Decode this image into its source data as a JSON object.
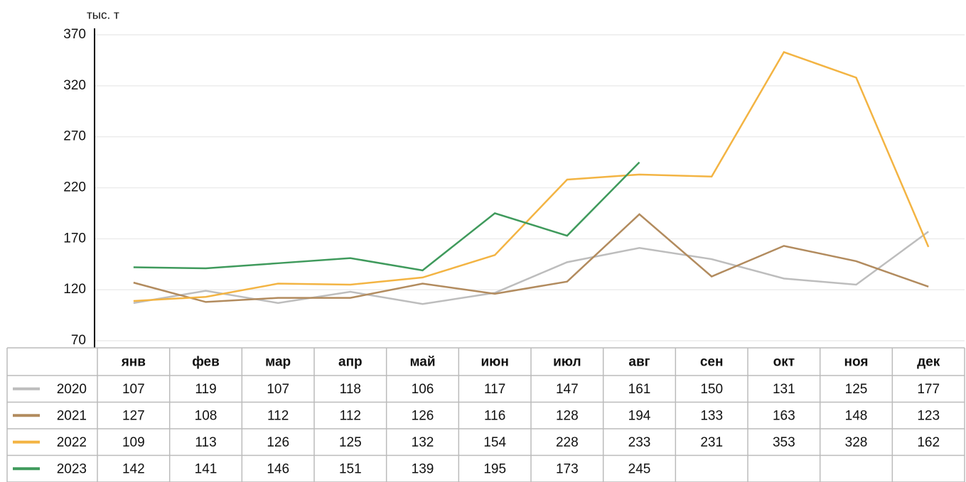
{
  "chart_data": {
    "type": "line",
    "y_unit": "тыс. т",
    "categories": [
      "янв",
      "фев",
      "мар",
      "апр",
      "май",
      "июн",
      "июл",
      "авг",
      "сен",
      "окт",
      "ноя",
      "дек"
    ],
    "series": [
      {
        "name": "2020",
        "color": "#bdbdbd",
        "values": [
          107,
          119,
          107,
          118,
          106,
          117,
          147,
          161,
          150,
          131,
          125,
          177
        ]
      },
      {
        "name": "2021",
        "color": "#b28b5e",
        "values": [
          127,
          108,
          112,
          112,
          126,
          116,
          128,
          194,
          133,
          163,
          148,
          123
        ]
      },
      {
        "name": "2022",
        "color": "#f3b443",
        "values": [
          109,
          113,
          126,
          125,
          132,
          154,
          228,
          233,
          231,
          353,
          328,
          162
        ]
      },
      {
        "name": "2023",
        "color": "#3f9a5c",
        "values": [
          142,
          141,
          146,
          151,
          139,
          195,
          173,
          245,
          null,
          null,
          null,
          null
        ]
      }
    ],
    "ylim": [
      70,
      370
    ],
    "yticks": [
      70,
      120,
      170,
      220,
      270,
      320,
      370
    ],
    "grid": true
  }
}
